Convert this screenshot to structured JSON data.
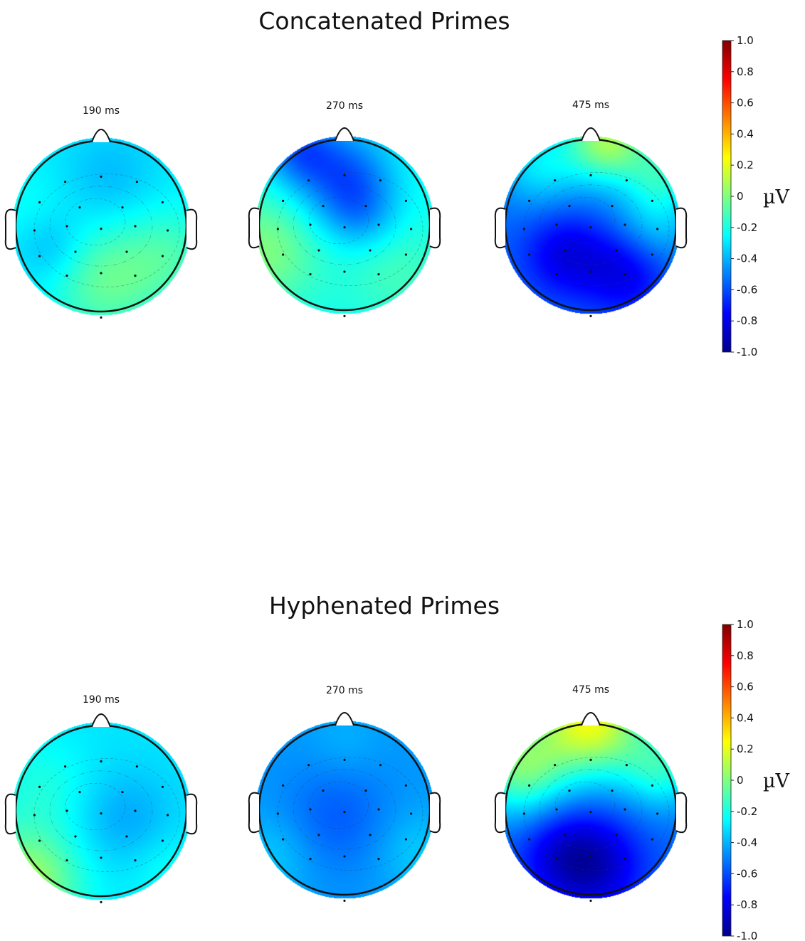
{
  "chart_data": [
    {
      "type": "heatmap",
      "title": "Concatenated Primes",
      "unit": "µV",
      "colorbar": {
        "range": [
          -1.0,
          1.0
        ],
        "ticks": [
          "1.0",
          "0.8",
          "0.6",
          "0.4",
          "0.2",
          "0",
          "-0.2",
          "-0.4",
          "-0.6",
          "-0.8",
          "-1.0"
        ],
        "colors": [
          "#00008f",
          "#0000ff",
          "#0080ff",
          "#00ffff",
          "#80ff80",
          "#ffff00",
          "#ff8000",
          "#ff0000",
          "#800000"
        ]
      },
      "maps": [
        {
          "label": "190 ms",
          "base": -0.28,
          "blobs": [
            {
              "x": 0.05,
              "y": 0.65,
              "v": 0.22,
              "s": 0.45
            },
            {
              "x": 0.8,
              "y": 0.35,
              "v": 0.15,
              "s": 0.4
            },
            {
              "x": -0.6,
              "y": 0.25,
              "v": -0.12,
              "s": 0.3
            },
            {
              "x": 0.1,
              "y": -0.6,
              "v": -0.1,
              "s": 0.4
            },
            {
              "x": -0.9,
              "y": -0.2,
              "v": 0.05,
              "s": 0.35
            }
          ]
        },
        {
          "label": "270 ms",
          "base": -0.22,
          "blobs": [
            {
              "x": 0.0,
              "y": -0.55,
              "v": -0.35,
              "s": 0.4
            },
            {
              "x": -0.55,
              "y": -0.9,
              "v": -0.3,
              "s": 0.3
            },
            {
              "x": 0.2,
              "y": -0.1,
              "v": -0.15,
              "s": 0.3
            },
            {
              "x": -0.95,
              "y": 0.3,
              "v": 0.22,
              "s": 0.45
            },
            {
              "x": 0.6,
              "y": 0.55,
              "v": 0.1,
              "s": 0.4
            }
          ]
        },
        {
          "label": "475 ms",
          "base": -0.55,
          "blobs": [
            {
              "x": 0.2,
              "y": -1.0,
              "v": 0.6,
              "s": 0.35
            },
            {
              "x": 0.85,
              "y": -0.6,
              "v": 0.3,
              "s": 0.3
            },
            {
              "x": 0.75,
              "y": 0.0,
              "v": 0.2,
              "s": 0.35
            },
            {
              "x": -0.3,
              "y": 0.35,
              "v": -0.25,
              "s": 0.35
            },
            {
              "x": 0.4,
              "y": 0.55,
              "v": -0.25,
              "s": 0.35
            },
            {
              "x": -0.6,
              "y": -0.7,
              "v": 0.25,
              "s": 0.35
            }
          ]
        }
      ]
    },
    {
      "type": "heatmap",
      "title": "Hyphenated  Primes",
      "unit": "µV",
      "colorbar": {
        "range": [
          -1.0,
          1.0
        ],
        "ticks": [
          "1.0",
          "0.8",
          "0.6",
          "0.4",
          "0.2",
          "0",
          "-0.2",
          "-0.4",
          "-0.6",
          "-0.8",
          "-1.0"
        ],
        "colors": [
          "#00008f",
          "#0000ff",
          "#0080ff",
          "#00ffff",
          "#80ff80",
          "#ffff00",
          "#ff8000",
          "#ff0000",
          "#800000"
        ]
      },
      "maps": [
        {
          "label": "190 ms",
          "base": -0.3,
          "blobs": [
            {
              "x": -0.9,
              "y": 0.85,
              "v": 0.38,
              "s": 0.45
            },
            {
              "x": 0.3,
              "y": 0.1,
              "v": -0.12,
              "s": 0.4
            },
            {
              "x": -0.7,
              "y": -0.3,
              "v": 0.1,
              "s": 0.4
            },
            {
              "x": 0.8,
              "y": 0.7,
              "v": 0.08,
              "s": 0.35
            }
          ]
        },
        {
          "label": "270 ms",
          "base": -0.45,
          "blobs": [
            {
              "x": -0.1,
              "y": 0.1,
              "v": -0.12,
              "s": 0.45
            },
            {
              "x": 0.85,
              "y": 0.5,
              "v": 0.1,
              "s": 0.35
            },
            {
              "x": -0.85,
              "y": 0.55,
              "v": 0.1,
              "s": 0.35
            },
            {
              "x": 0.0,
              "y": -0.8,
              "v": 0.05,
              "s": 0.3
            }
          ]
        },
        {
          "label": "475 ms",
          "base": -0.55,
          "blobs": [
            {
              "x": 0.0,
              "y": -1.05,
              "v": 0.75,
              "s": 0.45
            },
            {
              "x": -0.85,
              "y": -0.5,
              "v": 0.5,
              "s": 0.4
            },
            {
              "x": 0.85,
              "y": -0.5,
              "v": 0.35,
              "s": 0.35
            },
            {
              "x": 0.0,
              "y": 0.65,
              "v": -0.35,
              "s": 0.4
            },
            {
              "x": -0.4,
              "y": 0.5,
              "v": -0.15,
              "s": 0.35
            }
          ]
        }
      ]
    }
  ]
}
